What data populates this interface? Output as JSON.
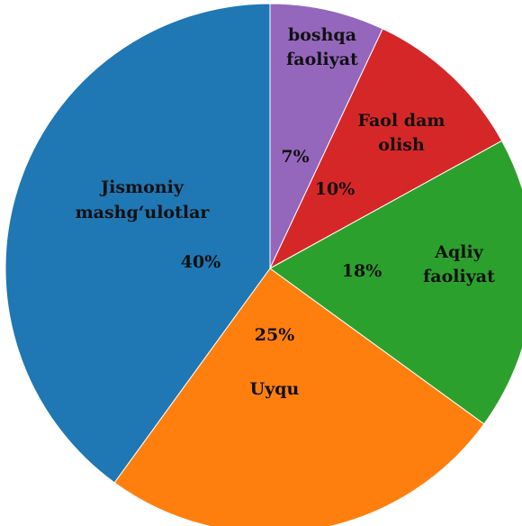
{
  "chart_data": {
    "type": "pie",
    "start_angle_deg": 0,
    "direction": "clockwise",
    "slices": [
      {
        "label": [
          "boshqa",
          "faoliyat"
        ],
        "value": 7,
        "value_label": "7%",
        "color": "#9467bd"
      },
      {
        "label": [
          "Faol dam",
          "olish"
        ],
        "value": 10,
        "value_label": "10%",
        "color": "#d62728"
      },
      {
        "label": [
          "Aqliy",
          "faoliyat"
        ],
        "value": 18,
        "value_label": "18%",
        "color": "#2ca02c"
      },
      {
        "label": [
          "Uyqu"
        ],
        "value": 25,
        "value_label": "25%",
        "color": "#ff7f0e"
      },
      {
        "label": [
          "Jismoniy",
          "mashg‘ulotlar"
        ],
        "value": 40,
        "value_label": "40%",
        "color": "#1f77b4"
      }
    ]
  }
}
